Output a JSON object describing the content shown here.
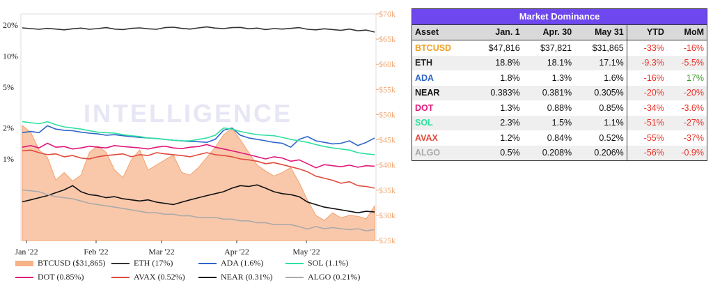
{
  "chart_data": {
    "type": "line",
    "x_labels": [
      "Jan '22",
      "Feb '22",
      "Mar '22",
      "Apr '22",
      "May '22"
    ],
    "y_left_labels": [
      "20%",
      "10%",
      "5%",
      "2%",
      "1%"
    ],
    "y_right_labels": [
      "$70k",
      "$65k",
      "$60k",
      "$55k",
      "$50k",
      "$45k",
      "$40k",
      "$35k",
      "$30k",
      "$25k"
    ],
    "y_left_scale": "log",
    "y_right_range": [
      25000,
      70000
    ],
    "grid": false,
    "series": [
      {
        "name": "BTCUSD ($31,865)",
        "color": "#f6b187",
        "type": "area",
        "axis": "right",
        "values": [
          47816,
          46500,
          43000,
          41500,
          37000,
          38500,
          36800,
          38000,
          42500,
          43800,
          42500,
          39000,
          37500,
          41000,
          43000,
          39000,
          40000,
          41000,
          42000,
          38500,
          38000,
          39500,
          41500,
          43500,
          46000,
          47300,
          45000,
          42500,
          40000,
          38800,
          37800,
          38500,
          39500,
          36500,
          33000,
          30000,
          29000,
          30500,
          29500,
          30000,
          29800,
          29300,
          31865
        ]
      },
      {
        "name": "ETH (17%)",
        "color": "#333333",
        "axis": "left",
        "values": [
          18.8,
          18.5,
          18.2,
          18.6,
          18.3,
          18.0,
          18.4,
          18.7,
          18.2,
          18.5,
          18.9,
          18.3,
          18.1,
          18.6,
          18.8,
          18.4,
          18.2,
          18.9,
          19.1,
          18.6,
          18.3,
          18.8,
          19.2,
          18.7,
          18.5,
          18.9,
          19.0,
          18.4,
          18.7,
          18.1,
          18.5,
          18.3,
          18.6,
          18.9,
          18.2,
          18.0,
          18.4,
          18.1,
          17.8,
          18.3,
          17.6,
          17.9,
          17.1
        ]
      },
      {
        "name": "ADA (1.6%)",
        "color": "#2e66c8",
        "axis": "left",
        "values": [
          1.8,
          1.85,
          1.8,
          2.1,
          1.95,
          1.9,
          1.88,
          1.82,
          1.78,
          1.75,
          1.7,
          1.72,
          1.68,
          1.65,
          1.62,
          1.6,
          1.58,
          1.55,
          1.52,
          1.5,
          1.48,
          1.47,
          1.45,
          1.55,
          1.9,
          2.0,
          1.7,
          1.6,
          1.55,
          1.5,
          1.45,
          1.42,
          1.3,
          1.55,
          1.65,
          1.5,
          1.45,
          1.4,
          1.42,
          1.5,
          1.35,
          1.45,
          1.6
        ]
      },
      {
        "name": "SOL (1.1%)",
        "color": "#2fe0a0",
        "axis": "left",
        "values": [
          2.3,
          2.25,
          2.2,
          2.3,
          2.15,
          2.05,
          2.0,
          1.95,
          1.88,
          1.82,
          1.8,
          1.78,
          1.72,
          1.68,
          1.65,
          1.6,
          1.58,
          1.55,
          1.52,
          1.5,
          1.5,
          1.55,
          1.6,
          1.7,
          2.0,
          1.95,
          1.85,
          1.78,
          1.72,
          1.7,
          1.68,
          1.62,
          1.55,
          1.5,
          1.45,
          1.38,
          1.32,
          1.28,
          1.25,
          1.22,
          1.15,
          1.12,
          1.1
        ]
      },
      {
        "name": "DOT (0.85%)",
        "color": "#e0187a",
        "axis": "left",
        "values": [
          1.3,
          1.35,
          1.28,
          1.42,
          1.3,
          1.32,
          1.25,
          1.28,
          1.33,
          1.3,
          1.28,
          1.35,
          1.32,
          1.3,
          1.28,
          1.25,
          1.3,
          1.33,
          1.28,
          1.26,
          1.3,
          1.32,
          1.38,
          1.3,
          1.25,
          1.2,
          1.15,
          1.1,
          1.05,
          1.0,
          1.05,
          1.02,
          0.95,
          0.98,
          0.9,
          0.82,
          0.88,
          0.86,
          0.84,
          0.87,
          0.83,
          0.86,
          0.85
        ]
      },
      {
        "name": "AVAX (0.52%)",
        "color": "#e04a3c",
        "axis": "left",
        "values": [
          1.2,
          1.22,
          1.15,
          1.1,
          1.12,
          1.05,
          1.08,
          1.02,
          1.0,
          1.05,
          1.08,
          1.1,
          1.12,
          1.05,
          1.1,
          1.08,
          1.15,
          1.12,
          1.1,
          1.08,
          1.05,
          1.1,
          1.15,
          1.1,
          1.08,
          1.05,
          1.0,
          0.98,
          0.95,
          0.9,
          0.92,
          0.88,
          0.84,
          0.8,
          0.75,
          0.68,
          0.65,
          0.62,
          0.58,
          0.6,
          0.55,
          0.54,
          0.52
        ]
      },
      {
        "name": "NEAR (0.31%)",
        "color": "#111111",
        "axis": "left",
        "values": [
          0.383,
          0.4,
          0.42,
          0.44,
          0.47,
          0.5,
          0.55,
          0.48,
          0.45,
          0.44,
          0.42,
          0.43,
          0.41,
          0.4,
          0.39,
          0.4,
          0.38,
          0.37,
          0.36,
          0.38,
          0.4,
          0.42,
          0.44,
          0.46,
          0.48,
          0.52,
          0.55,
          0.54,
          0.56,
          0.52,
          0.48,
          0.46,
          0.45,
          0.43,
          0.381,
          0.36,
          0.34,
          0.33,
          0.32,
          0.31,
          0.3,
          0.31,
          0.305
        ]
      },
      {
        "name": "ALGO (0.21%)",
        "color": "#aaaaaa",
        "axis": "left",
        "values": [
          0.5,
          0.49,
          0.48,
          0.45,
          0.43,
          0.42,
          0.41,
          0.39,
          0.37,
          0.36,
          0.35,
          0.34,
          0.33,
          0.32,
          0.31,
          0.3,
          0.3,
          0.29,
          0.29,
          0.28,
          0.28,
          0.27,
          0.27,
          0.27,
          0.26,
          0.26,
          0.25,
          0.25,
          0.24,
          0.24,
          0.23,
          0.23,
          0.23,
          0.22,
          0.208,
          0.22,
          0.21,
          0.215,
          0.21,
          0.205,
          0.21,
          0.2,
          0.206
        ]
      }
    ],
    "legend_placement": "bottom"
  },
  "watermark": "INTELLIGENCE",
  "table": {
    "title": "Market Dominance",
    "headers": [
      "Asset",
      "Jan. 1",
      "Apr. 30",
      "May 31",
      "YTD",
      "MoM"
    ],
    "rows": [
      {
        "asset": "BTCUSD",
        "color": "#f0a020",
        "jan": "$47,816",
        "apr": "$37,821",
        "may": "$31,865",
        "ytd": "-33%",
        "mom": "-16%",
        "ytd_class": "neg",
        "mom_class": "neg"
      },
      {
        "asset": "ETH",
        "color": "#222222",
        "jan": "18.8%",
        "apr": "18.1%",
        "may": "17.1%",
        "ytd": "-9.3%",
        "mom": "-5.5%",
        "ytd_class": "neg",
        "mom_class": "neg"
      },
      {
        "asset": "ADA",
        "color": "#2e66c8",
        "jan": "1.8%",
        "apr": "1.3%",
        "may": "1.6%",
        "ytd": "-16%",
        "mom": "17%",
        "ytd_class": "neg",
        "mom_class": "pos"
      },
      {
        "asset": "NEAR",
        "color": "#111111",
        "jan": "0.383%",
        "apr": "0.381%",
        "may": "0.305%",
        "ytd": "-20%",
        "mom": "-20%",
        "ytd_class": "neg",
        "mom_class": "neg"
      },
      {
        "asset": "DOT",
        "color": "#e0187a",
        "jan": "1.3%",
        "apr": "0.88%",
        "may": "0.85%",
        "ytd": "-34%",
        "mom": "-3.6%",
        "ytd_class": "neg",
        "mom_class": "neg"
      },
      {
        "asset": "SOL",
        "color": "#2fe0a0",
        "jan": "2.3%",
        "apr": "1.5%",
        "may": "1.1%",
        "ytd": "-51%",
        "mom": "-27%",
        "ytd_class": "neg",
        "mom_class": "neg"
      },
      {
        "asset": "AVAX",
        "color": "#e04a3c",
        "jan": "1.2%",
        "apr": "0.84%",
        "may": "0.52%",
        "ytd": "-55%",
        "mom": "-37%",
        "ytd_class": "neg",
        "mom_class": "neg"
      },
      {
        "asset": "ALGO",
        "color": "#aaaaaa",
        "jan": "0.5%",
        "apr": "0.208%",
        "may": "0.206%",
        "ytd": "-56%",
        "mom": "-0.9%",
        "ytd_class": "neg",
        "mom_class": "neg"
      }
    ]
  }
}
